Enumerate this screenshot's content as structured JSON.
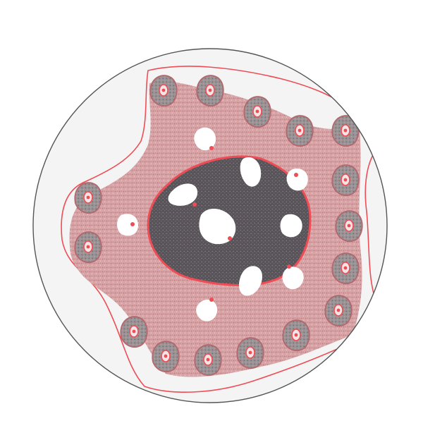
{
  "figure": {
    "kind": "circular-fractal-map",
    "colors": {
      "background": "#ffffff",
      "disk_fill": "#f4f4f5",
      "disk_stroke": "#555555",
      "core_dark": "#555155",
      "core_mid": "#6b6568",
      "mantle_pink": "#d99a9e",
      "mantle_dense": "#b06a70",
      "accent_red": "#ee4d55",
      "lobe_gray": "#8a8486",
      "hole": "#ffffff"
    },
    "symmetry": "three-fold",
    "lobe_count": 16
  }
}
